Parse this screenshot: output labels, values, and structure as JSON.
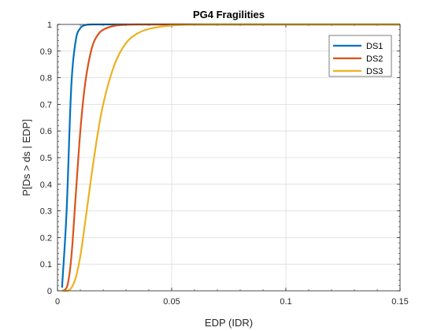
{
  "chart_data": {
    "type": "line",
    "title": "PG4 Fragilities",
    "xlabel": "EDP (IDR)",
    "ylabel": "P[Ds > ds | EDP]",
    "xlim": [
      0,
      0.15
    ],
    "ylim": [
      0,
      1
    ],
    "xticks": [
      "0",
      "0.05",
      "0.1",
      "0.15"
    ],
    "yticks": [
      "0",
      "0.1",
      "0.2",
      "0.3",
      "0.4",
      "0.5",
      "0.6",
      "0.7",
      "0.8",
      "0.9",
      "1"
    ],
    "grid": true,
    "legend_position": "top-right",
    "x": [
      0.002,
      0.004,
      0.006,
      0.008,
      0.01,
      0.012,
      0.015,
      0.018,
      0.02,
      0.025,
      0.03,
      0.035,
      0.04,
      0.05,
      0.06,
      0.07,
      0.08,
      0.1,
      0.12,
      0.15
    ],
    "series": [
      {
        "name": "DS1",
        "color": "#0072BD",
        "values": [
          0.012,
          0.3,
          0.76,
          0.94,
          0.986,
          0.997,
          1.0,
          1.0,
          1.0,
          1.0,
          1.0,
          1.0,
          1.0,
          1.0,
          1.0,
          1.0,
          1.0,
          1.0,
          1.0,
          1.0
        ]
      },
      {
        "name": "DS2",
        "color": "#D95319",
        "values": [
          0.0,
          0.012,
          0.12,
          0.36,
          0.6,
          0.77,
          0.91,
          0.965,
          0.98,
          0.995,
          0.999,
          1.0,
          1.0,
          1.0,
          1.0,
          1.0,
          1.0,
          1.0,
          1.0,
          1.0
        ]
      },
      {
        "name": "DS3",
        "color": "#EDB120",
        "values": [
          0.0,
          0.0,
          0.01,
          0.05,
          0.13,
          0.25,
          0.44,
          0.61,
          0.7,
          0.85,
          0.93,
          0.966,
          0.983,
          0.996,
          0.999,
          1.0,
          1.0,
          1.0,
          1.0,
          1.0
        ]
      }
    ]
  }
}
